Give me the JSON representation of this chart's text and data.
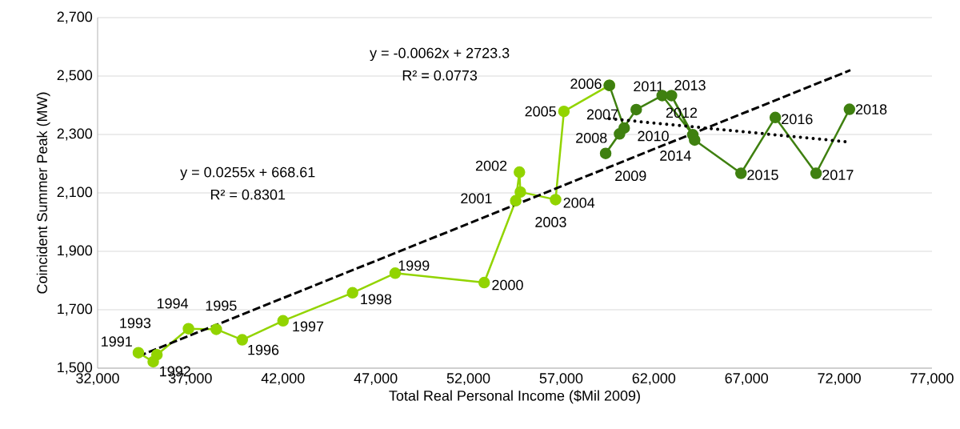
{
  "chart_data": {
    "type": "line",
    "xlabel": "Total Real Personal Income ($Mil 2009)",
    "ylabel": "Coincident Summer Peak (MW)",
    "xlim": [
      32000,
      77000
    ],
    "xticks": [
      {
        "value": 32000,
        "label": "32,000"
      },
      {
        "value": 37000,
        "label": "37,000"
      },
      {
        "value": 42000,
        "label": "42,000"
      },
      {
        "value": 47000,
        "label": "47,000"
      },
      {
        "value": 52000,
        "label": "52,000"
      },
      {
        "value": 57000,
        "label": "57,000"
      },
      {
        "value": 62000,
        "label": "62,000"
      },
      {
        "value": 67000,
        "label": "67,000"
      },
      {
        "value": 72000,
        "label": "72,000"
      },
      {
        "value": 77000,
        "label": "77,000"
      }
    ],
    "ylim": [
      1500,
      2700
    ],
    "yticks": [
      {
        "value": 1500,
        "label": "1,500"
      },
      {
        "value": 1700,
        "label": "1,700"
      },
      {
        "value": 1900,
        "label": "1,900"
      },
      {
        "value": 2100,
        "label": "2,100"
      },
      {
        "value": 2300,
        "label": "2,300"
      },
      {
        "value": 2500,
        "label": "2,500"
      },
      {
        "value": 2700,
        "label": "2,700"
      }
    ],
    "grid": "y",
    "marker": "circle",
    "series": [
      {
        "color": "#92d400",
        "x": [
          34200,
          35000,
          35200,
          36900,
          38400,
          39800,
          42000,
          45750,
          48050,
          52850,
          54550,
          54750,
          54800,
          56700,
          57150,
          59600
        ],
        "values": [
          1553,
          1522,
          1546,
          1635,
          1633,
          1597,
          1662,
          1758,
          1825,
          1793,
          2073,
          2171,
          2103,
          2077,
          2379,
          2468
        ]
      },
      {
        "color": "#3f8010",
        "x": [
          59600,
          60400,
          60150,
          59400,
          61050,
          62450,
          64100,
          62950,
          64200,
          66700,
          68550,
          70750,
          72550
        ],
        "values": [
          2468,
          2322,
          2302,
          2235,
          2385,
          2433,
          2299,
          2433,
          2281,
          2167,
          2358,
          2167,
          2386
        ]
      },
      {
        "type": "line",
        "color": "#000000",
        "line_style": "dotted",
        "marker": "none",
        "x": [
          59600,
          72550
        ],
        "values": [
          2354,
          2274
        ]
      },
      {
        "type": "line",
        "color": "#000000",
        "line_style": "dashed",
        "marker": "none",
        "x": [
          34200,
          72600
        ],
        "values": [
          1541,
          2520
        ]
      }
    ],
    "annotations": [
      "y = -0.0062x + 2723.3",
      "R² = 0.0773",
      "y = 0.0255x + 668.61",
      "R² = 0.8301",
      {
        "text": "1991",
        "x": 34200,
        "y": 1553
      },
      {
        "text": "1992",
        "x": 35000,
        "y": 1522
      },
      {
        "text": "1993",
        "x": 35200,
        "y": 1546
      },
      {
        "text": "1994",
        "x": 36900,
        "y": 1635
      },
      {
        "text": "1995",
        "x": 38400,
        "y": 1633
      },
      {
        "text": "1996",
        "x": 39800,
        "y": 1597
      },
      {
        "text": "1997",
        "x": 42000,
        "y": 1662
      },
      {
        "text": "1998",
        "x": 45750,
        "y": 1758
      },
      {
        "text": "1999",
        "x": 48050,
        "y": 1825
      },
      {
        "text": "2000",
        "x": 52850,
        "y": 1793
      },
      {
        "text": "2001",
        "x": 54550,
        "y": 2073
      },
      {
        "text": "2002",
        "x": 54750,
        "y": 2171
      },
      {
        "text": "2003",
        "x": 54800,
        "y": 2103
      },
      {
        "text": "2004",
        "x": 56700,
        "y": 2077
      },
      {
        "text": "2005",
        "x": 57150,
        "y": 2379
      },
      {
        "text": "2006",
        "x": 59600,
        "y": 2468
      },
      {
        "text": "2007",
        "x": 60400,
        "y": 2322
      },
      {
        "text": "2008",
        "x": 60150,
        "y": 2302
      },
      {
        "text": "2009",
        "x": 59400,
        "y": 2235
      },
      {
        "text": "2010",
        "x": 61050,
        "y": 2385
      },
      {
        "text": "2011",
        "x": 62450,
        "y": 2433
      },
      {
        "text": "2012",
        "x": 64100,
        "y": 2299
      },
      {
        "text": "2013",
        "x": 62950,
        "y": 2433
      },
      {
        "text": "2014",
        "x": 64200,
        "y": 2281
      },
      {
        "text": "2015",
        "x": 66700,
        "y": 2167
      },
      {
        "text": "2016",
        "x": 68550,
        "y": 2358
      },
      {
        "text": "2017",
        "x": 70750,
        "y": 2167
      },
      {
        "text": "2018",
        "x": 72550,
        "y": 2386
      }
    ]
  }
}
